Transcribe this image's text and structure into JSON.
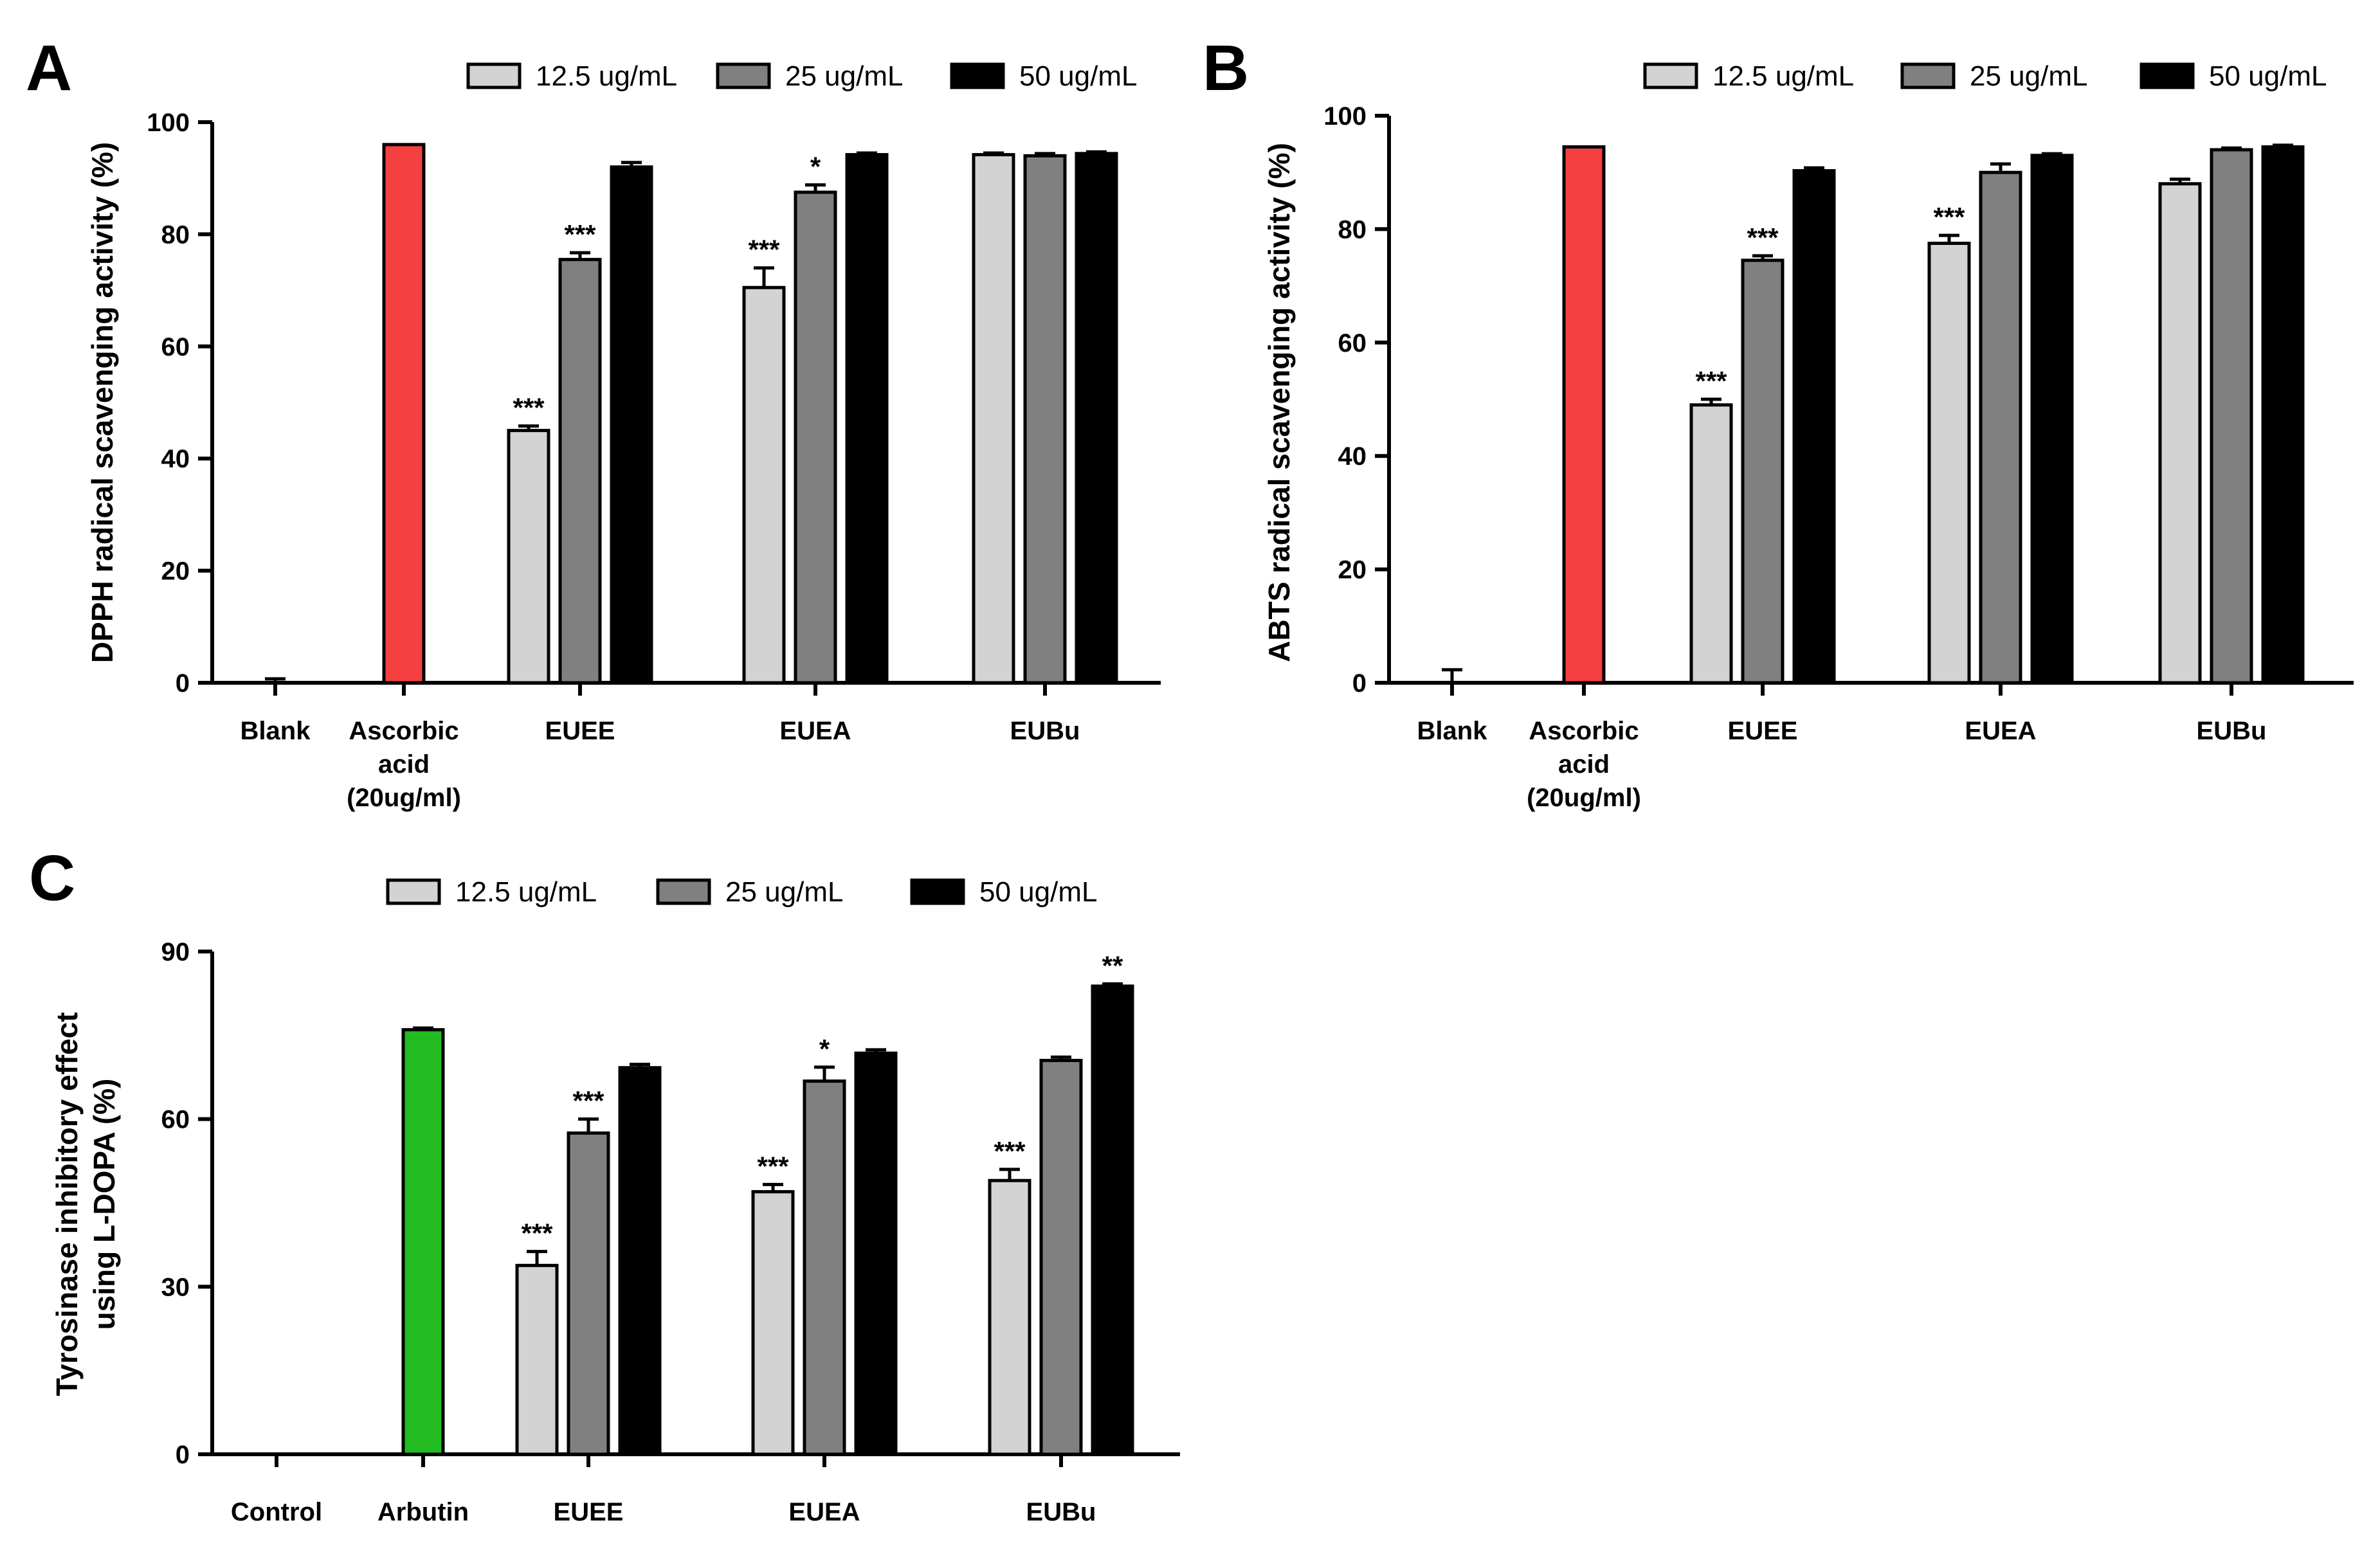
{
  "colors": {
    "c12": "#d3d3d3",
    "c25": "#808080",
    "c50": "#000000",
    "ascorbic": "#f44040",
    "arbutin": "#22bb22"
  },
  "legend": [
    {
      "label": "12.5 ug/mL",
      "color_key": "c12"
    },
    {
      "label": "25 ug/mL",
      "color_key": "c25"
    },
    {
      "label": "50 ug/mL",
      "color_key": "c50"
    }
  ],
  "chart_data": [
    {
      "panel": "A",
      "type": "bar",
      "ylabel": "DPPH radical scavenging activity (%)",
      "ylim": [
        0,
        100
      ],
      "yticks": [
        0,
        20,
        40,
        60,
        80,
        100
      ],
      "categories": [
        {
          "label": [
            "Blank"
          ],
          "bars": [
            {
              "value": 0,
              "err": 0.7,
              "color_key": "none"
            }
          ]
        },
        {
          "label": [
            "Ascorbic",
            "acid",
            "(20ug/ml)"
          ],
          "bars": [
            {
              "value": 96,
              "err": 0,
              "color_key": "ascorbic",
              "border": false
            }
          ]
        },
        {
          "label": [
            "EUEE"
          ],
          "bars": [
            {
              "value": 45,
              "err": 0.8,
              "color_key": "c12",
              "sig": "***"
            },
            {
              "value": 75.5,
              "err": 1.2,
              "color_key": "c25",
              "sig": "***"
            },
            {
              "value": 92,
              "err": 0.8,
              "color_key": "c50"
            }
          ]
        },
        {
          "label": [
            "EUEA"
          ],
          "bars": [
            {
              "value": 70.5,
              "err": 3.5,
              "color_key": "c12",
              "sig": "***"
            },
            {
              "value": 87.5,
              "err": 1.3,
              "color_key": "c25",
              "sig": "*"
            },
            {
              "value": 94.2,
              "err": 0.3,
              "color_key": "c50"
            }
          ]
        },
        {
          "label": [
            "EUBu"
          ],
          "bars": [
            {
              "value": 94.2,
              "err": 0.3,
              "color_key": "c12"
            },
            {
              "value": 94,
              "err": 0.4,
              "color_key": "c25"
            },
            {
              "value": 94.4,
              "err": 0.3,
              "color_key": "c50"
            }
          ]
        }
      ]
    },
    {
      "panel": "B",
      "type": "bar",
      "ylabel": "ABTS radical scavenging activity (%)",
      "ylim": [
        0,
        100
      ],
      "yticks": [
        0,
        20,
        40,
        60,
        80,
        100
      ],
      "categories": [
        {
          "label": [
            "Blank"
          ],
          "bars": [
            {
              "value": 0,
              "err": 2.3,
              "color_key": "none"
            }
          ]
        },
        {
          "label": [
            "Ascorbic",
            "acid",
            "(20ug/ml)"
          ],
          "bars": [
            {
              "value": 94.5,
              "err": 0,
              "color_key": "ascorbic",
              "border": false
            }
          ]
        },
        {
          "label": [
            "EUEE"
          ],
          "bars": [
            {
              "value": 49,
              "err": 1.0,
              "color_key": "c12",
              "sig": "***"
            },
            {
              "value": 74.5,
              "err": 0.8,
              "color_key": "c25",
              "sig": "***"
            },
            {
              "value": 90.3,
              "err": 0.5,
              "color_key": "c50"
            }
          ]
        },
        {
          "label": [
            "EUEA"
          ],
          "bars": [
            {
              "value": 77.5,
              "err": 1.4,
              "color_key": "c12",
              "sig": "***"
            },
            {
              "value": 90,
              "err": 1.5,
              "color_key": "c25"
            },
            {
              "value": 93,
              "err": 0.3,
              "color_key": "c50"
            }
          ]
        },
        {
          "label": [
            "EUBu"
          ],
          "bars": [
            {
              "value": 88,
              "err": 0.8,
              "color_key": "c12"
            },
            {
              "value": 94,
              "err": 0.3,
              "color_key": "c25"
            },
            {
              "value": 94.5,
              "err": 0.3,
              "color_key": "c50"
            }
          ]
        }
      ]
    },
    {
      "panel": "C",
      "type": "bar",
      "ylabel": [
        "Tyrosinase inhibitory effect",
        "using L-DOPA (%)"
      ],
      "ylim": [
        0,
        90
      ],
      "yticks": [
        0,
        30,
        60,
        90
      ],
      "categories": [
        {
          "label": [
            "Control"
          ],
          "bars": [
            {
              "value": 0,
              "err": 0,
              "color_key": "none"
            }
          ]
        },
        {
          "label": [
            "Arbutin"
          ],
          "bars": [
            {
              "value": 76,
              "err": 0.3,
              "color_key": "arbutin"
            }
          ]
        },
        {
          "label": [
            "EUEE"
          ],
          "bars": [
            {
              "value": 33.8,
              "err": 2.5,
              "color_key": "c12",
              "sig": "***"
            },
            {
              "value": 57.5,
              "err": 2.5,
              "color_key": "c25",
              "sig": "***"
            },
            {
              "value": 69.2,
              "err": 0.6,
              "color_key": "c50"
            }
          ]
        },
        {
          "label": [
            "EUEA"
          ],
          "bars": [
            {
              "value": 47,
              "err": 1.3,
              "color_key": "c12",
              "sig": "***"
            },
            {
              "value": 66.8,
              "err": 2.5,
              "color_key": "c25",
              "sig": "*"
            },
            {
              "value": 71.8,
              "err": 0.6,
              "color_key": "c50"
            }
          ]
        },
        {
          "label": [
            "EUBu"
          ],
          "bars": [
            {
              "value": 49,
              "err": 2.0,
              "color_key": "c12",
              "sig": "***"
            },
            {
              "value": 70.5,
              "err": 0.6,
              "color_key": "c25"
            },
            {
              "value": 83.8,
              "err": 0.4,
              "color_key": "c50",
              "sig": "**"
            }
          ]
        }
      ]
    }
  ]
}
